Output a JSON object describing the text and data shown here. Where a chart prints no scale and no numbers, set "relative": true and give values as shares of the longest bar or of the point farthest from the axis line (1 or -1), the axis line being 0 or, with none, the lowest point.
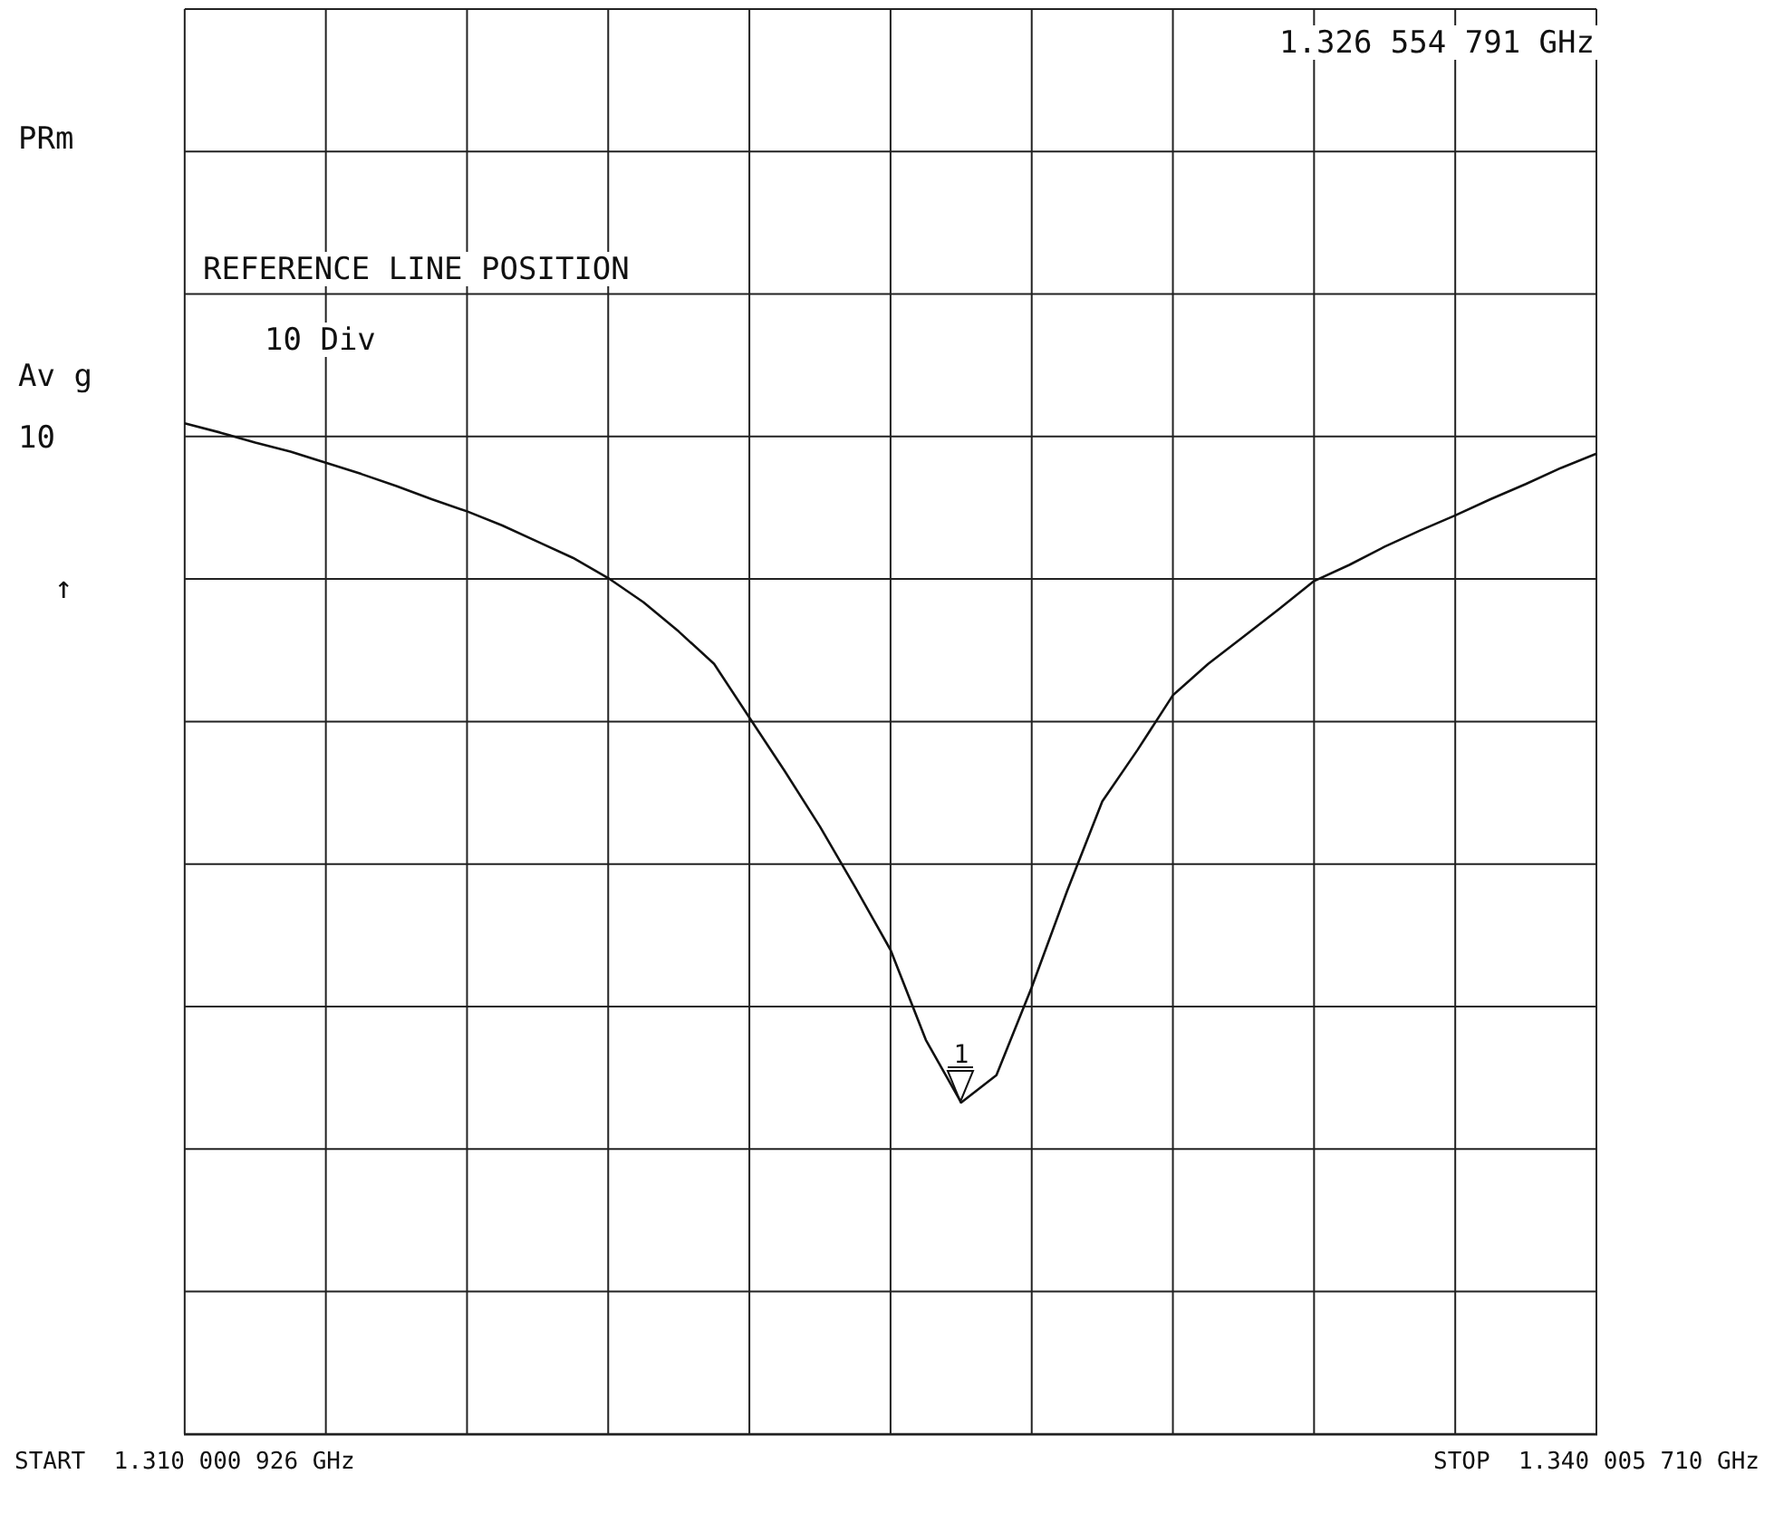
{
  "chart_data": {
    "type": "line",
    "relative": true,
    "grid": true,
    "legend": false,
    "marker": "none",
    "line_style": "solid",
    "categories": [
      "START  1.310 000 926 GHz",
      null,
      null,
      null,
      null,
      null,
      null,
      null,
      null,
      null,
      null,
      null,
      null,
      null,
      null,
      null,
      null,
      null,
      null,
      null,
      null,
      null,
      null,
      null,
      null,
      null,
      null,
      null,
      null,
      null,
      null,
      null,
      null,
      null,
      null,
      null,
      null,
      null,
      null,
      null,
      "STOP  1.340 005 710 GHz"
    ],
    "annotations": [
      "PRm",
      "Av g",
      "10",
      "↑",
      "REFERENCE LINE POSITION",
      "10 Div",
      "1.326 554 791 GHz",
      {
        "text": "1",
        "y": 0.328
      }
    ],
    "series": [
      {
        "color": "#111111",
        "values": [
          1,
          0.991,
          0.981,
          0.972,
          0.961,
          0.95,
          0.938,
          0.925,
          0.913,
          0.899,
          0.883,
          0.867,
          0.847,
          0.823,
          0.794,
          0.762,
          0.709,
          0.656,
          0.601,
          0.541,
          0.479,
          0.39,
          0.328,
          0.355,
          0.442,
          0.537,
          0.626,
          0.677,
          0.731,
          0.762,
          0.789,
          0.816,
          0.844,
          0.86,
          0.878,
          0.894,
          0.909,
          0.925,
          0.94,
          0.956,
          0.97
        ]
      }
    ]
  }
}
